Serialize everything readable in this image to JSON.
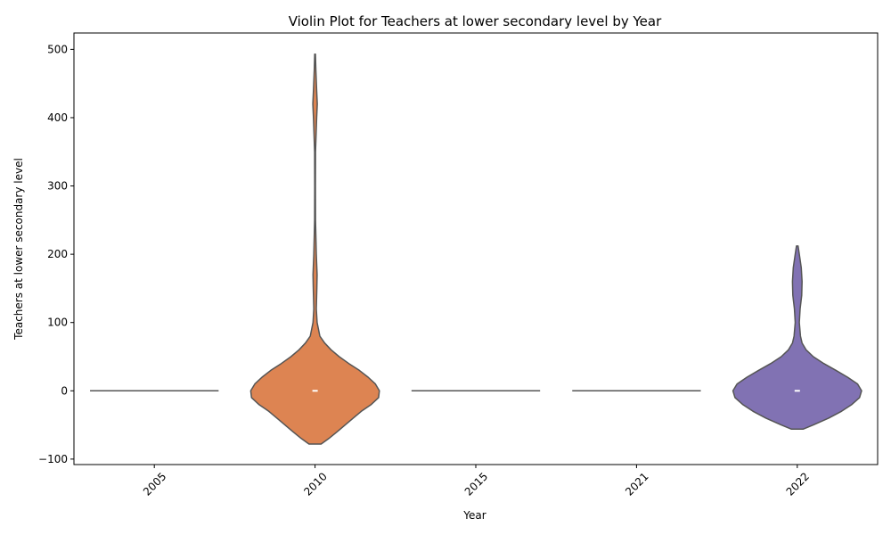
{
  "chart_data": {
    "type": "violin",
    "title": "Violin Plot for Teachers at lower secondary level by Year",
    "xlabel": "Year",
    "ylabel": "Teachers at lower secondary level",
    "categories": [
      "2005",
      "2010",
      "2015",
      "2021",
      "2022"
    ],
    "ylim": [
      -108,
      524
    ],
    "yticks": [
      -100,
      0,
      100,
      200,
      300,
      400,
      500
    ],
    "grid": false,
    "violins": [
      {
        "category": "2005",
        "color": "#4c72b0",
        "degenerate": true,
        "value": 0,
        "min": 0,
        "max": 0,
        "median": 0
      },
      {
        "category": "2010",
        "color": "#dd8452",
        "degenerate": false,
        "min": -78,
        "max": 493,
        "median": 0,
        "profile": [
          [
            -78,
            0.15
          ],
          [
            -70,
            0.34
          ],
          [
            -60,
            0.55
          ],
          [
            -50,
            0.75
          ],
          [
            -40,
            0.95
          ],
          [
            -30,
            1.15
          ],
          [
            -20,
            1.4
          ],
          [
            -10,
            1.58
          ],
          [
            0,
            1.6
          ],
          [
            10,
            1.5
          ],
          [
            20,
            1.32
          ],
          [
            30,
            1.1
          ],
          [
            40,
            0.84
          ],
          [
            50,
            0.6
          ],
          [
            60,
            0.4
          ],
          [
            70,
            0.24
          ],
          [
            80,
            0.12
          ],
          [
            100,
            0.05
          ],
          [
            120,
            0.03
          ],
          [
            150,
            0.045
          ],
          [
            170,
            0.05
          ],
          [
            200,
            0.03
          ],
          [
            250,
            0.01
          ],
          [
            300,
            0.008
          ],
          [
            350,
            0.012
          ],
          [
            400,
            0.04
          ],
          [
            420,
            0.055
          ],
          [
            440,
            0.04
          ],
          [
            470,
            0.02
          ],
          [
            493,
            0.008
          ]
        ]
      },
      {
        "category": "2015",
        "color": "#55a868",
        "degenerate": true,
        "value": 0,
        "min": 0,
        "max": 0,
        "median": 0
      },
      {
        "category": "2021",
        "color": "#c44e52",
        "degenerate": true,
        "value": 0,
        "min": 0,
        "max": 0,
        "median": 0
      },
      {
        "category": "2022",
        "color": "#8172b3",
        "degenerate": false,
        "min": -56,
        "max": 212,
        "median": 0,
        "profile": [
          [
            -56,
            0.15
          ],
          [
            -50,
            0.4
          ],
          [
            -40,
            0.78
          ],
          [
            -30,
            1.1
          ],
          [
            -20,
            1.36
          ],
          [
            -10,
            1.55
          ],
          [
            0,
            1.6
          ],
          [
            10,
            1.5
          ],
          [
            20,
            1.25
          ],
          [
            30,
            0.96
          ],
          [
            40,
            0.66
          ],
          [
            50,
            0.4
          ],
          [
            60,
            0.22
          ],
          [
            70,
            0.12
          ],
          [
            80,
            0.08
          ],
          [
            100,
            0.05
          ],
          [
            120,
            0.07
          ],
          [
            140,
            0.11
          ],
          [
            160,
            0.12
          ],
          [
            180,
            0.1
          ],
          [
            200,
            0.05
          ],
          [
            212,
            0.02
          ]
        ]
      }
    ]
  }
}
